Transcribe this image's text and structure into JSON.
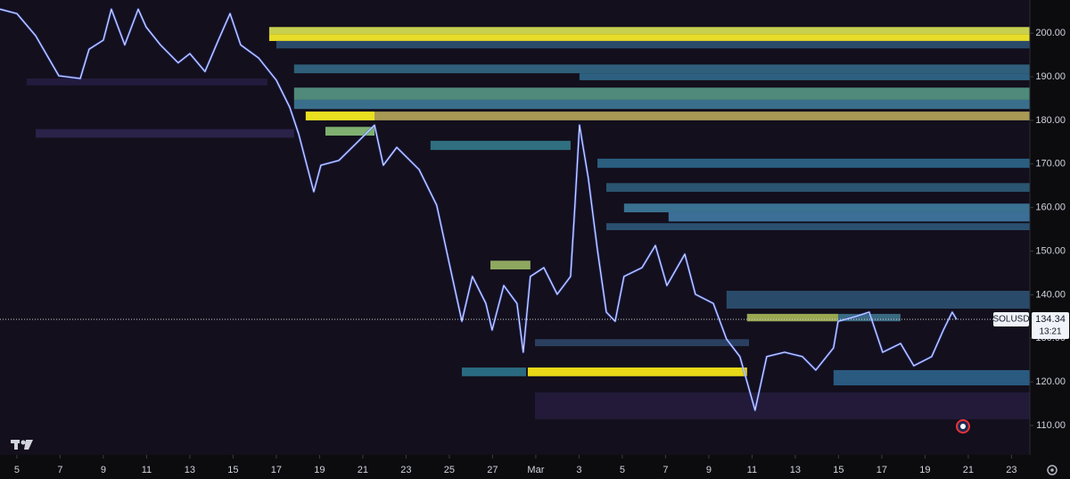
{
  "chart_data": {
    "type": "line",
    "symbol": "SOLUSD",
    "price": 134.34,
    "countdown": "13:21",
    "xlim": [
      -0.78,
      46.85
    ],
    "ylim": [
      103.25,
      207.6
    ],
    "xticks": [
      {
        "value": 0,
        "label": "5"
      },
      {
        "value": 2,
        "label": "7"
      },
      {
        "value": 4,
        "label": "9"
      },
      {
        "value": 6,
        "label": "11"
      },
      {
        "value": 8,
        "label": "13"
      },
      {
        "value": 10,
        "label": "15"
      },
      {
        "value": 12,
        "label": "17"
      },
      {
        "value": 14,
        "label": "19"
      },
      {
        "value": 16,
        "label": "21"
      },
      {
        "value": 18,
        "label": "23"
      },
      {
        "value": 20,
        "label": "25"
      },
      {
        "value": 22,
        "label": "27"
      },
      {
        "value": 24,
        "label": "Mar"
      },
      {
        "value": 26,
        "label": "3"
      },
      {
        "value": 28,
        "label": "5"
      },
      {
        "value": 30,
        "label": "7"
      },
      {
        "value": 32,
        "label": "9"
      },
      {
        "value": 34,
        "label": "11"
      },
      {
        "value": 36,
        "label": "13"
      },
      {
        "value": 38,
        "label": "15"
      },
      {
        "value": 40,
        "label": "17"
      },
      {
        "value": 42,
        "label": "19"
      },
      {
        "value": 44,
        "label": "21"
      },
      {
        "value": 46,
        "label": "23"
      }
    ],
    "yticks": [
      {
        "value": 110,
        "label": "110.00"
      },
      {
        "value": 120,
        "label": "120.00"
      },
      {
        "value": 130,
        "label": "130.00"
      },
      {
        "value": 140,
        "label": "140.00"
      },
      {
        "value": 150,
        "label": "150.00"
      },
      {
        "value": 160,
        "label": "160.00"
      },
      {
        "value": 170,
        "label": "170.00"
      },
      {
        "value": 180,
        "label": "180.00"
      },
      {
        "value": 190,
        "label": "190.00"
      },
      {
        "value": 200,
        "label": "200.00"
      }
    ],
    "heatmap": [
      {
        "y0": 111.4,
        "y1": 117.6,
        "x0": 23.96,
        "x1": 46.85,
        "color": "#221a38"
      },
      {
        "y0": 188.0,
        "y1": 189.6,
        "x0": 0.45,
        "x1": 11.59,
        "color": "#231b3d"
      },
      {
        "y0": 176.0,
        "y1": 178.0,
        "x0": 0.87,
        "x1": 12.82,
        "color": "#2a2248"
      },
      {
        "y0": 198.2,
        "y1": 199.8,
        "x0": 11.67,
        "x1": 46.85,
        "color": "#e6dc2a"
      },
      {
        "y0": 199.8,
        "y1": 201.4,
        "x0": 11.67,
        "x1": 46.85,
        "color": "#c8d050"
      },
      {
        "y0": 196.5,
        "y1": 198.2,
        "x0": 12.0,
        "x1": 46.85,
        "color": "#2a4a6a"
      },
      {
        "y0": 190.8,
        "y1": 192.8,
        "x0": 12.82,
        "x1": 46.85,
        "color": "#2f5f7a"
      },
      {
        "y0": 189.2,
        "y1": 190.8,
        "x0": 26.02,
        "x1": 46.85,
        "color": "#2d6080"
      },
      {
        "y0": 184.7,
        "y1": 187.5,
        "x0": 12.82,
        "x1": 46.85,
        "color": "#4f8a7a"
      },
      {
        "y0": 182.6,
        "y1": 184.7,
        "x0": 12.82,
        "x1": 46.85,
        "color": "#3a6f8c"
      },
      {
        "y0": 180.0,
        "y1": 182.0,
        "x0": 13.36,
        "x1": 46.85,
        "color": "#a89a55"
      },
      {
        "y0": 180.0,
        "y1": 182.0,
        "x0": 13.36,
        "x1": 16.54,
        "color": "#e8e020"
      },
      {
        "y0": 176.5,
        "y1": 178.5,
        "x0": 14.27,
        "x1": 16.54,
        "color": "#7fb070"
      },
      {
        "y0": 173.2,
        "y1": 175.3,
        "x0": 19.13,
        "x1": 25.61,
        "color": "#2f6f80"
      },
      {
        "y0": 169.1,
        "y1": 171.2,
        "x0": 26.85,
        "x1": 46.85,
        "color": "#2a5f80"
      },
      {
        "y0": 163.6,
        "y1": 165.6,
        "x0": 27.26,
        "x1": 46.85,
        "color": "#2a5570"
      },
      {
        "y0": 158.9,
        "y1": 160.9,
        "x0": 28.08,
        "x1": 46.85,
        "color": "#3a7090"
      },
      {
        "y0": 156.8,
        "y1": 158.9,
        "x0": 30.14,
        "x1": 46.85,
        "color": "#3b6f98"
      },
      {
        "y0": 154.8,
        "y1": 156.4,
        "x0": 27.26,
        "x1": 46.85,
        "color": "#2a5070"
      },
      {
        "y0": 145.8,
        "y1": 147.8,
        "x0": 21.9,
        "x1": 23.75,
        "color": "#8fa860"
      },
      {
        "y0": 136.8,
        "y1": 140.9,
        "x0": 32.82,
        "x1": 46.85,
        "color": "#2a4a6a"
      },
      {
        "y0": 133.9,
        "y1": 135.6,
        "x0": 33.77,
        "x1": 40.87,
        "color": "#3a6a80"
      },
      {
        "y0": 133.9,
        "y1": 135.6,
        "x0": 33.77,
        "x1": 37.98,
        "color": "#9aa850"
      },
      {
        "y0": 128.2,
        "y1": 129.8,
        "x0": 23.96,
        "x1": 33.86,
        "color": "#2a3f60"
      },
      {
        "y0": 121.3,
        "y1": 123.3,
        "x0": 20.58,
        "x1": 23.55,
        "color": "#2a6a80"
      },
      {
        "y0": 121.3,
        "y1": 123.3,
        "x0": 23.63,
        "x1": 33.77,
        "color": "#e8d818"
      },
      {
        "y0": 119.2,
        "y1": 122.7,
        "x0": 37.77,
        "x1": 46.85,
        "color": "#2a5a80"
      }
    ],
    "series": [
      {
        "color": "#c9d3ff",
        "x": [
          -0.78,
          0,
          0.87,
          1.94,
          2.93,
          3.34,
          4,
          4.37,
          4.99,
          5.61,
          5.98,
          6.64,
          7.46,
          8,
          8.7,
          9.32,
          9.86,
          10.35,
          11.18,
          12,
          12.62,
          13.03,
          13.73,
          14.06,
          14.89,
          15.71,
          16.54,
          16.95,
          17.57,
          18.6,
          19.42,
          20.04,
          20.58,
          21.07,
          21.69,
          21.98,
          22.52,
          23.13,
          23.42,
          23.75,
          24.37,
          24.99,
          25.61,
          25.81,
          26.02,
          26.43,
          26.85,
          27.26,
          27.67,
          28.08,
          28.91,
          29.53,
          30.06,
          30.89,
          31.38,
          32.21,
          32.82,
          33.44,
          34.14,
          34.68,
          35.51,
          36.33,
          36.95,
          37.77,
          37.98,
          38.8,
          39.42,
          40.04,
          40.87,
          41.48,
          42.31,
          42.85,
          43.26,
          43.46
        ],
        "values": [
          205.5,
          204.5,
          199.4,
          190.2,
          189.6,
          196.3,
          198.4,
          205.5,
          197.3,
          205.5,
          201.4,
          197.3,
          193.2,
          195.3,
          191.2,
          198.4,
          204.5,
          197.3,
          194.3,
          189.2,
          183.0,
          176.9,
          163.6,
          169.7,
          170.8,
          174.8,
          178.9,
          169.7,
          173.8,
          168.7,
          160.5,
          146.2,
          133.9,
          144.2,
          138.0,
          131.9,
          142.1,
          138.0,
          126.8,
          144.2,
          146.2,
          140.1,
          144.2,
          160.5,
          178.9,
          166.7,
          150.3,
          136.0,
          133.9,
          144.2,
          146.2,
          151.3,
          142.1,
          149.3,
          140.1,
          138.0,
          129.8,
          125.8,
          113.5,
          125.8,
          126.8,
          125.8,
          122.7,
          127.8,
          133.9,
          135.0,
          136.0,
          126.8,
          128.8,
          123.7,
          125.8,
          131.9,
          136.0,
          134.34
        ]
      }
    ]
  }
}
